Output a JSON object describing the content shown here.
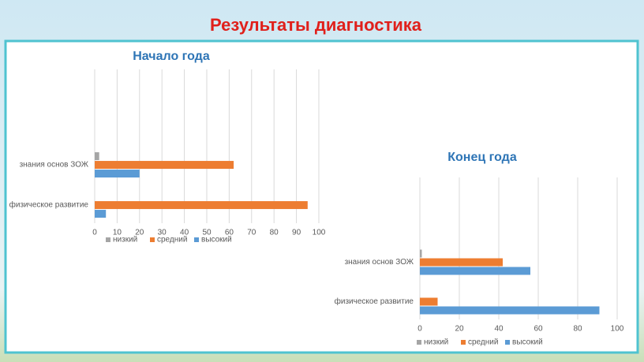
{
  "title": "Результаты диагностика",
  "chart_data": [
    {
      "type": "hbar",
      "title": "Начало года",
      "categories": [
        "физическое развитие",
        "знания основ ЗОЖ"
      ],
      "series": [
        {
          "name": "низкий",
          "color": "#a5a5a5",
          "values": [
            0,
            2
          ]
        },
        {
          "name": "средний",
          "color": "#ed7d31",
          "values": [
            95,
            62
          ]
        },
        {
          "name": "высокий",
          "color": "#5b9bd5",
          "values": [
            5,
            20
          ]
        }
      ],
      "xlim": [
        0,
        100
      ],
      "xticks": [
        0,
        10,
        20,
        30,
        40,
        50,
        60,
        70,
        80,
        90,
        100
      ],
      "grid": true,
      "legend": "bottom"
    },
    {
      "type": "hbar",
      "title": "Конец года",
      "categories": [
        "физическое развитие",
        "знания основ ЗОЖ"
      ],
      "series": [
        {
          "name": "низкий",
          "color": "#a5a5a5",
          "values": [
            0,
            1
          ]
        },
        {
          "name": "средний",
          "color": "#ed7d31",
          "values": [
            9,
            42
          ]
        },
        {
          "name": "высокий",
          "color": "#5b9bd5",
          "values": [
            91,
            56
          ]
        }
      ],
      "xlim": [
        0,
        100
      ],
      "xticks": [
        0,
        20,
        40,
        60,
        80,
        100
      ],
      "grid": true,
      "legend": "bottom"
    }
  ]
}
